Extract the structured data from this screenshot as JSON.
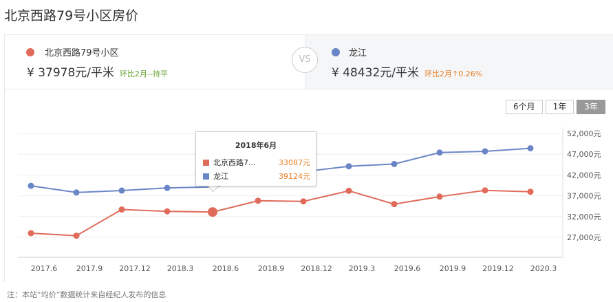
{
  "title": "北京西路79号小区房价",
  "left": {
    "name": "北京西路79号小区",
    "price": "¥ 37978元/平米",
    "change": "环比2月--持平",
    "color": "#e06b5a",
    "change_color": "#6aa336"
  },
  "vs": "VS",
  "right": {
    "name": "龙江",
    "price": "¥ 48432元/平米",
    "change": "环比2月↑0.26%",
    "color": "#6b86c6",
    "change_color": "#e67e22"
  },
  "range_buttons": [
    "6个月",
    "1年",
    "3年"
  ],
  "active_range": "3年",
  "tooltip": {
    "title": "2018年6月",
    "rows": [
      {
        "name": "北京西路7...",
        "value": "33087元"
      },
      {
        "name": "龙江",
        "value": "39124元"
      }
    ]
  },
  "note": "注：本站“均价”数据统计来自经纪人发布的信息",
  "chart_data": {
    "type": "line",
    "categories": [
      "2017.6",
      "2017.9",
      "2017.12",
      "2018.3",
      "2018.6",
      "2018.9",
      "2018.12",
      "2019.3",
      "2019.6",
      "2019.9",
      "2019.12",
      "2020.3"
    ],
    "y_ticks": [
      "27,000元",
      "32,000元",
      "37,000元",
      "42,000元",
      "47,000元",
      "52,000元"
    ],
    "ylim": [
      22000,
      52000
    ],
    "grid": true,
    "y_axis_position": "right",
    "series": [
      {
        "name": "北京西路79号小区",
        "color": "#e06b5a",
        "values": [
          28000,
          27400,
          33700,
          33250,
          33087,
          35800,
          35650,
          38200,
          35000,
          36800,
          38300,
          37978
        ]
      },
      {
        "name": "龙江",
        "color": "#6b86c6",
        "values": [
          39400,
          37800,
          38250,
          38900,
          39124,
          40500,
          42800,
          44100,
          44650,
          47400,
          47700,
          48432
        ]
      }
    ]
  }
}
